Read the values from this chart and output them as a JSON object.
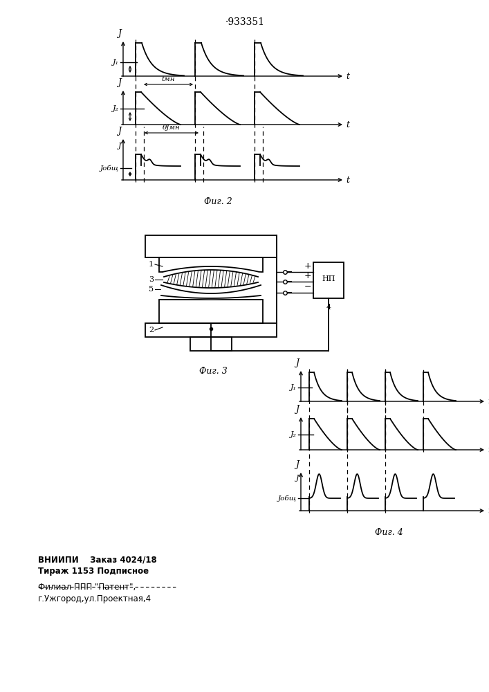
{
  "title": "·933351",
  "fig2_label": "Фиг. 2",
  "fig3_label": "Фиг. 3",
  "fig4_label": "Фиг. 4",
  "bg_color": "#ffffff",
  "line_color": "#000000",
  "bottom_text_line1": "ВНИИПИ    Заказ 4024/18",
  "bottom_text_line2": "Тираж 1153 Подписное",
  "bottom_text_line3": "Филиал ППП \"Патент\",",
  "bottom_text_line4": "г.Ужгород,ул.Проектная,4"
}
